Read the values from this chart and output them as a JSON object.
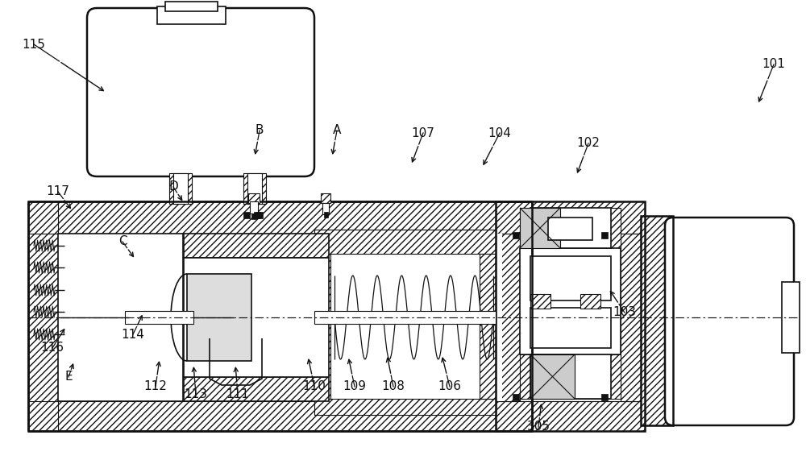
{
  "figsize": [
    10.0,
    5.71
  ],
  "dpi": 100,
  "lc": "#111111",
  "labels": [
    [
      "101",
      960,
      80,
      940,
      130
    ],
    [
      "102",
      730,
      178,
      715,
      218
    ],
    [
      "103",
      775,
      388,
      755,
      358
    ],
    [
      "104",
      620,
      165,
      598,
      208
    ],
    [
      "106",
      558,
      480,
      548,
      440
    ],
    [
      "107",
      525,
      165,
      510,
      205
    ],
    [
      "108",
      488,
      480,
      480,
      440
    ],
    [
      "109",
      440,
      480,
      432,
      442
    ],
    [
      "110",
      390,
      480,
      382,
      442
    ],
    [
      "111",
      295,
      490,
      292,
      452
    ],
    [
      "112",
      193,
      480,
      198,
      445
    ],
    [
      "113",
      243,
      490,
      240,
      452
    ],
    [
      "114",
      165,
      415,
      178,
      388
    ],
    [
      "115",
      42,
      55,
      132,
      115
    ],
    [
      "116",
      65,
      432,
      82,
      405
    ],
    [
      "117",
      72,
      238,
      90,
      262
    ],
    [
      "305",
      668,
      530,
      672,
      498
    ],
    [
      "A",
      418,
      162,
      412,
      195
    ],
    [
      "B",
      322,
      162,
      316,
      195
    ],
    [
      "C",
      152,
      300,
      168,
      322
    ],
    [
      "D",
      215,
      232,
      228,
      252
    ],
    [
      "E",
      85,
      468,
      92,
      448
    ]
  ]
}
